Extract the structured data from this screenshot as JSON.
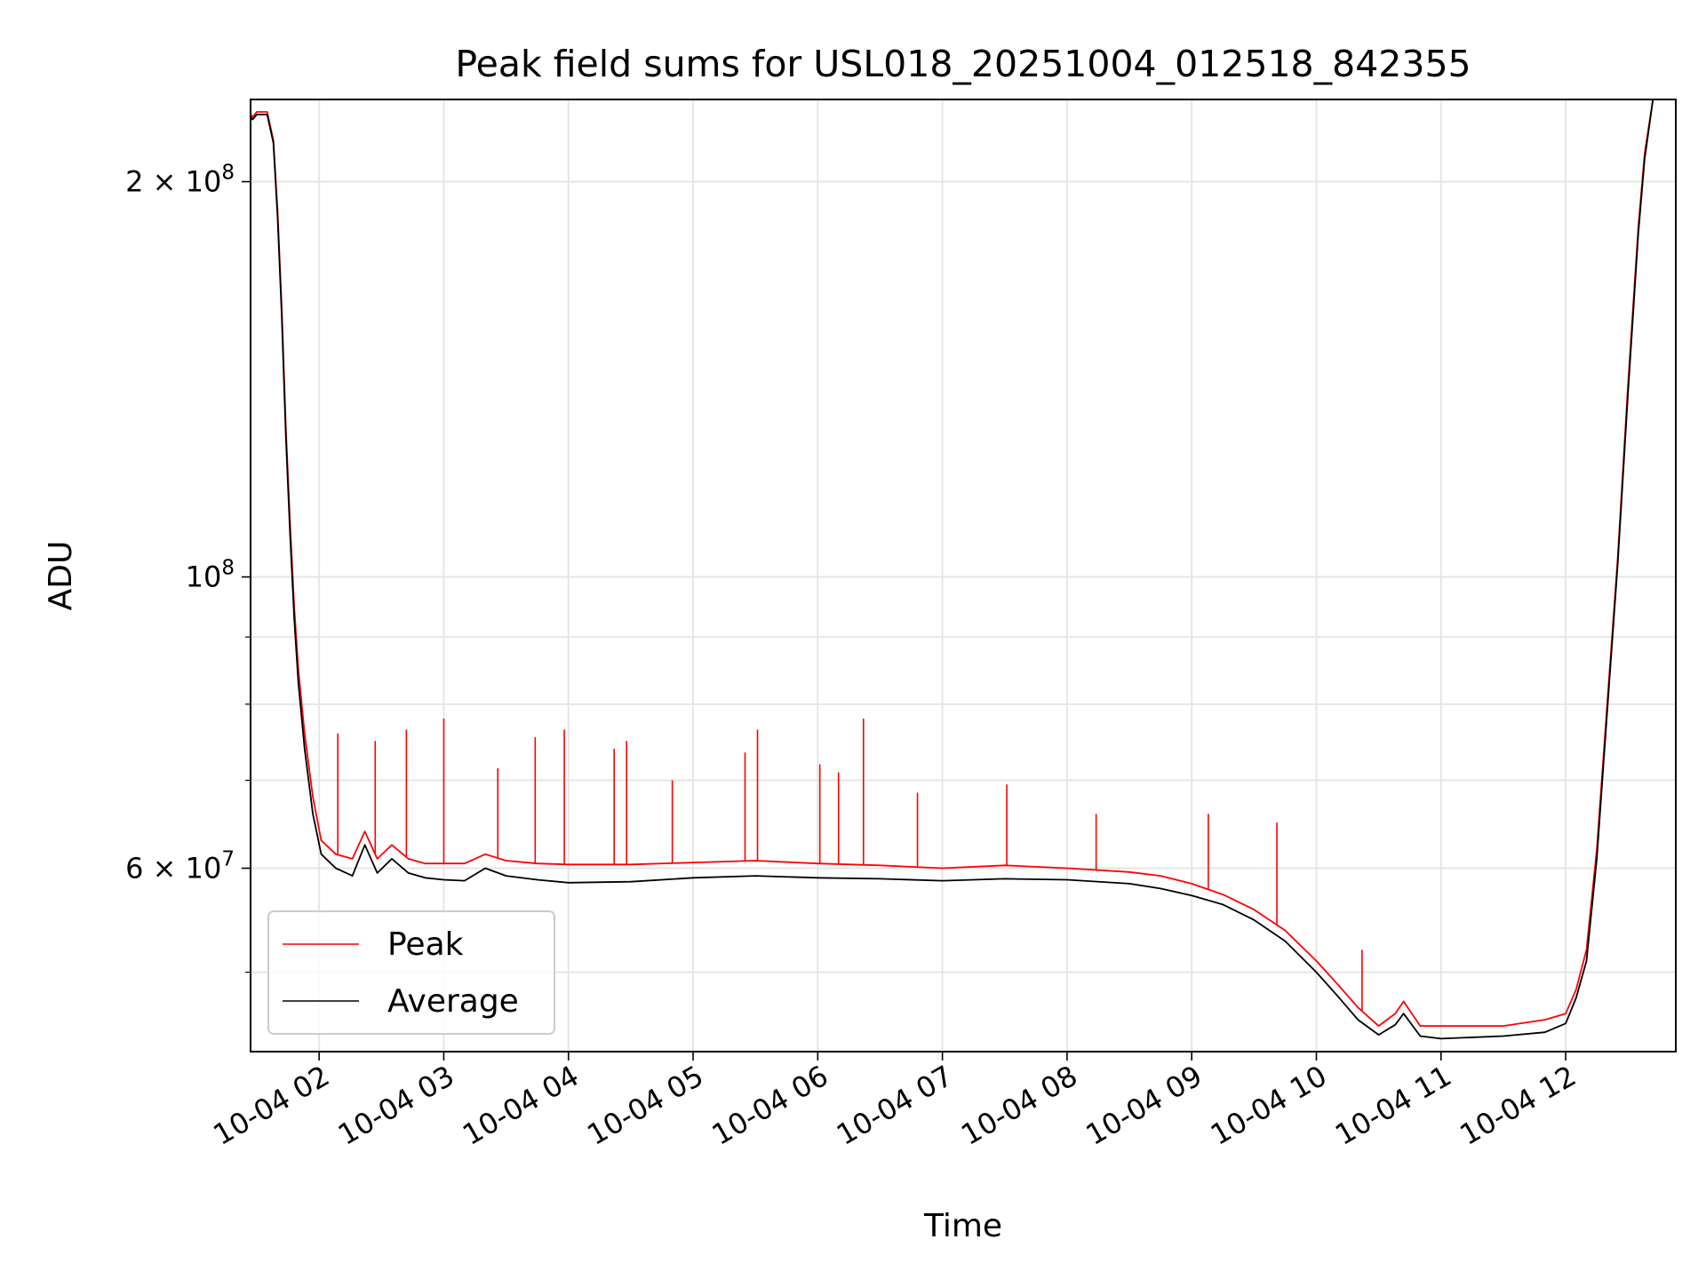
{
  "chart_data": {
    "type": "line",
    "title": "Peak field sums for USL018_20251004_012518_842355",
    "xlabel": "Time",
    "ylabel": "ADU",
    "yscale": "log",
    "grid": true,
    "legend_position": "lower-left",
    "xlim": [
      "2025-10-04 01:27",
      "2025-10-04 12:53"
    ],
    "ylim": [
      43500000,
      231000000
    ],
    "x_ticks": [
      {
        "value": "2025-10-04 02:00",
        "label": "10-04 02"
      },
      {
        "value": "2025-10-04 03:00",
        "label": "10-04 03"
      },
      {
        "value": "2025-10-04 04:00",
        "label": "10-04 04"
      },
      {
        "value": "2025-10-04 05:00",
        "label": "10-04 05"
      },
      {
        "value": "2025-10-04 06:00",
        "label": "10-04 06"
      },
      {
        "value": "2025-10-04 07:00",
        "label": "10-04 07"
      },
      {
        "value": "2025-10-04 08:00",
        "label": "10-04 08"
      },
      {
        "value": "2025-10-04 09:00",
        "label": "10-04 09"
      },
      {
        "value": "2025-10-04 10:00",
        "label": "10-04 10"
      },
      {
        "value": "2025-10-04 11:00",
        "label": "10-04 11"
      },
      {
        "value": "2025-10-04 12:00",
        "label": "10-04 12"
      }
    ],
    "y_ticks": [
      {
        "value": 200000000,
        "base": "2 × 10",
        "exp": "8"
      },
      {
        "value": 100000000,
        "base": "10",
        "exp": "8"
      },
      {
        "value": 60000000,
        "base": "6 × 10",
        "exp": "7"
      }
    ],
    "y_minor_ticks": [
      50000000,
      70000000,
      80000000,
      90000000
    ],
    "series": [
      {
        "name": "Peak",
        "color": "#ff0000",
        "x": [
          "2025-10-04 01:27",
          "2025-10-04 01:28",
          "2025-10-04 01:30",
          "2025-10-04 01:35",
          "2025-10-04 01:38",
          "2025-10-04 01:40",
          "2025-10-04 01:42",
          "2025-10-04 01:44",
          "2025-10-04 01:46",
          "2025-10-04 01:48",
          "2025-10-04 01:50",
          "2025-10-04 01:53",
          "2025-10-04 01:57",
          "2025-10-04 02:01",
          "2025-10-04 02:08",
          "2025-10-04 02:16",
          "2025-10-04 02:22",
          "2025-10-04 02:28",
          "2025-10-04 02:35",
          "2025-10-04 02:43",
          "2025-10-04 02:51",
          "2025-10-04 03:00",
          "2025-10-04 03:10",
          "2025-10-04 03:20",
          "2025-10-04 03:30",
          "2025-10-04 03:45",
          "2025-10-04 04:00",
          "2025-10-04 04:30",
          "2025-10-04 05:00",
          "2025-10-04 05:30",
          "2025-10-04 06:00",
          "2025-10-04 06:30",
          "2025-10-04 07:00",
          "2025-10-04 07:30",
          "2025-10-04 08:00",
          "2025-10-04 08:30",
          "2025-10-04 08:45",
          "2025-10-04 09:00",
          "2025-10-04 09:15",
          "2025-10-04 09:30",
          "2025-10-04 09:45",
          "2025-10-04 10:00",
          "2025-10-04 10:10",
          "2025-10-04 10:20",
          "2025-10-04 10:30",
          "2025-10-04 10:38",
          "2025-10-04 10:42",
          "2025-10-04 10:50",
          "2025-10-04 11:00",
          "2025-10-04 11:30",
          "2025-10-04 11:50",
          "2025-10-04 12:00",
          "2025-10-04 12:05",
          "2025-10-04 12:10",
          "2025-10-04 12:15",
          "2025-10-04 12:20",
          "2025-10-04 12:25",
          "2025-10-04 12:30",
          "2025-10-04 12:35",
          "2025-10-04 12:38",
          "2025-10-04 12:42",
          "2025-10-04 12:53"
        ],
        "y": [
          225000000,
          224000000,
          226000000,
          226000000,
          215000000,
          190000000,
          160000000,
          130000000,
          110000000,
          95000000,
          85000000,
          76000000,
          68000000,
          63000000,
          61500000,
          61000000,
          64000000,
          61000000,
          62500000,
          61000000,
          60500000,
          60500000,
          60500000,
          61500000,
          60800000,
          60500000,
          60400000,
          60400000,
          60600000,
          60800000,
          60500000,
          60300000,
          60000000,
          60300000,
          60000000,
          59600000,
          59200000,
          58400000,
          57300000,
          55800000,
          53800000,
          51000000,
          49000000,
          47000000,
          45500000,
          46500000,
          47500000,
          45500000,
          45500000,
          45500000,
          46000000,
          46500000,
          48500000,
          52000000,
          62000000,
          80000000,
          103000000,
          140000000,
          185000000,
          210000000,
          231000000,
          231000000
        ],
        "spikes": [
          {
            "x": "2025-10-04 02:09",
            "y": 76000000
          },
          {
            "x": "2025-10-04 02:27",
            "y": 75000000
          },
          {
            "x": "2025-10-04 02:42",
            "y": 76500000
          },
          {
            "x": "2025-10-04 03:00",
            "y": 78000000
          },
          {
            "x": "2025-10-04 03:26",
            "y": 71500000
          },
          {
            "x": "2025-10-04 03:44",
            "y": 75500000
          },
          {
            "x": "2025-10-04 03:58",
            "y": 76500000
          },
          {
            "x": "2025-10-04 04:22",
            "y": 74000000
          },
          {
            "x": "2025-10-04 04:28",
            "y": 75000000
          },
          {
            "x": "2025-10-04 04:50",
            "y": 70000000
          },
          {
            "x": "2025-10-04 05:25",
            "y": 73500000
          },
          {
            "x": "2025-10-04 05:31",
            "y": 76500000
          },
          {
            "x": "2025-10-04 06:01",
            "y": 72000000
          },
          {
            "x": "2025-10-04 06:10",
            "y": 71000000
          },
          {
            "x": "2025-10-04 06:22",
            "y": 78000000
          },
          {
            "x": "2025-10-04 06:48",
            "y": 68500000
          },
          {
            "x": "2025-10-04 07:31",
            "y": 69500000
          },
          {
            "x": "2025-10-04 08:14",
            "y": 66000000
          },
          {
            "x": "2025-10-04 09:08",
            "y": 66000000
          },
          {
            "x": "2025-10-04 09:41",
            "y": 65000000
          },
          {
            "x": "2025-10-04 10:22",
            "y": 52000000
          }
        ]
      },
      {
        "name": "Average",
        "color": "#000000",
        "x": [
          "2025-10-04 01:27",
          "2025-10-04 01:28",
          "2025-10-04 01:30",
          "2025-10-04 01:35",
          "2025-10-04 01:38",
          "2025-10-04 01:40",
          "2025-10-04 01:42",
          "2025-10-04 01:44",
          "2025-10-04 01:46",
          "2025-10-04 01:48",
          "2025-10-04 01:50",
          "2025-10-04 01:53",
          "2025-10-04 01:57",
          "2025-10-04 02:01",
          "2025-10-04 02:08",
          "2025-10-04 02:16",
          "2025-10-04 02:22",
          "2025-10-04 02:28",
          "2025-10-04 02:35",
          "2025-10-04 02:43",
          "2025-10-04 02:51",
          "2025-10-04 03:00",
          "2025-10-04 03:10",
          "2025-10-04 03:20",
          "2025-10-04 03:30",
          "2025-10-04 03:45",
          "2025-10-04 04:00",
          "2025-10-04 04:30",
          "2025-10-04 05:00",
          "2025-10-04 05:30",
          "2025-10-04 06:00",
          "2025-10-04 06:30",
          "2025-10-04 07:00",
          "2025-10-04 07:30",
          "2025-10-04 08:00",
          "2025-10-04 08:30",
          "2025-10-04 08:45",
          "2025-10-04 09:00",
          "2025-10-04 09:15",
          "2025-10-04 09:30",
          "2025-10-04 09:45",
          "2025-10-04 10:00",
          "2025-10-04 10:10",
          "2025-10-04 10:20",
          "2025-10-04 10:30",
          "2025-10-04 10:38",
          "2025-10-04 10:42",
          "2025-10-04 10:50",
          "2025-10-04 11:00",
          "2025-10-04 11:30",
          "2025-10-04 11:50",
          "2025-10-04 12:00",
          "2025-10-04 12:05",
          "2025-10-04 12:10",
          "2025-10-04 12:15",
          "2025-10-04 12:20",
          "2025-10-04 12:25",
          "2025-10-04 12:30",
          "2025-10-04 12:35",
          "2025-10-04 12:38",
          "2025-10-04 12:42",
          "2025-10-04 12:53"
        ],
        "y": [
          224000000,
          223000000,
          225000000,
          225000000,
          214000000,
          188000000,
          158000000,
          128000000,
          108000000,
          93000000,
          83000000,
          74000000,
          66000000,
          61500000,
          60000000,
          59200000,
          62500000,
          59500000,
          61000000,
          59500000,
          59000000,
          58800000,
          58700000,
          60000000,
          59200000,
          58800000,
          58500000,
          58600000,
          59000000,
          59200000,
          59000000,
          58900000,
          58700000,
          58900000,
          58800000,
          58400000,
          57900000,
          57200000,
          56300000,
          54800000,
          52800000,
          50000000,
          48000000,
          46000000,
          44800000,
          45600000,
          46500000,
          44700000,
          44500000,
          44700000,
          45000000,
          45700000,
          47800000,
          51000000,
          61000000,
          79000000,
          102000000,
          138000000,
          183000000,
          208000000,
          231000000,
          231000000
        ],
        "spikes": []
      }
    ]
  }
}
